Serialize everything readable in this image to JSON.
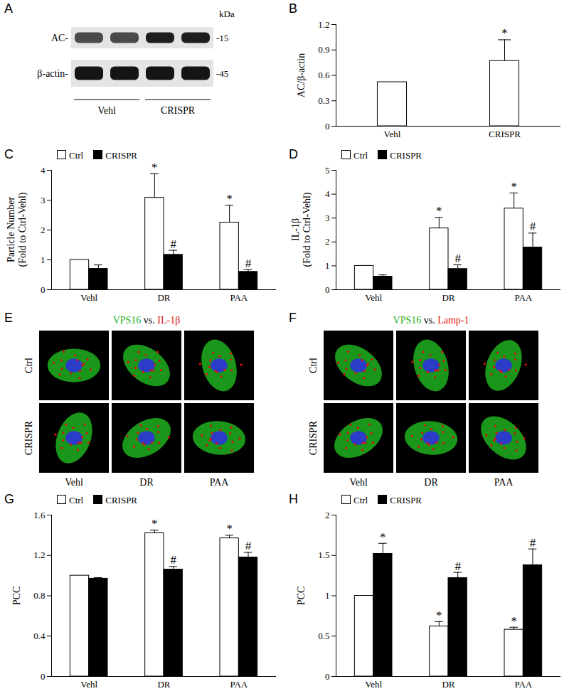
{
  "chart_data": [
    {
      "panel": "B",
      "type": "bar",
      "categories": [
        "Vehl",
        "CRISPR"
      ],
      "values": [
        0.52,
        0.77
      ],
      "errors": [
        null,
        0.25
      ],
      "significance": [
        null,
        "*"
      ],
      "color": "#ffffff",
      "ylabel": "AC/β-actin",
      "ylim": [
        0,
        1.2
      ],
      "yticks": [
        0,
        0.3,
        0.6,
        0.9,
        1.2
      ]
    },
    {
      "panel": "C",
      "type": "bar",
      "categories": [
        "Vehl",
        "DR",
        "PAA"
      ],
      "ylabel": "Particle Number\n(Fold to Ctrl-Vehl)",
      "legend": "top-left",
      "ylim": [
        0,
        4
      ],
      "yticks": [
        0,
        1,
        2,
        3,
        4
      ],
      "series": [
        {
          "name": "Ctrl",
          "color": "#ffffff",
          "values": [
            1.0,
            3.08,
            2.25
          ],
          "errors": [
            null,
            0.8,
            0.58
          ],
          "significance": [
            null,
            "*",
            "*"
          ]
        },
        {
          "name": "CRISPR",
          "color": "#000000",
          "values": [
            0.7,
            1.17,
            0.6
          ],
          "errors": [
            0.13,
            0.15,
            0.07
          ],
          "significance": [
            null,
            "#",
            "#"
          ]
        }
      ]
    },
    {
      "panel": "D",
      "type": "bar",
      "categories": [
        "Vehl",
        "DR",
        "PAA"
      ],
      "ylabel": "IL-1β\n(Fold to Ctrl-Vehl)",
      "legend": "top-left",
      "ylim": [
        0,
        5
      ],
      "yticks": [
        0,
        1,
        2,
        3,
        4,
        5
      ],
      "series": [
        {
          "name": "Ctrl",
          "color": "#ffffff",
          "values": [
            1.0,
            2.57,
            3.4
          ],
          "errors": [
            null,
            0.45,
            0.65
          ],
          "significance": [
            null,
            "*",
            "*"
          ]
        },
        {
          "name": "CRISPR",
          "color": "#000000",
          "values": [
            0.55,
            0.87,
            1.77
          ],
          "errors": [
            0.07,
            0.17,
            0.6
          ],
          "significance": [
            null,
            "#",
            "#"
          ]
        }
      ]
    },
    {
      "panel": "G",
      "type": "bar",
      "categories": [
        "Vehl",
        "DR",
        "PAA"
      ],
      "ylabel": "PCC",
      "legend": "top-left",
      "ylim": [
        0,
        1.6
      ],
      "yticks": [
        0,
        0.4,
        0.8,
        1.2,
        1.6
      ],
      "series": [
        {
          "name": "Ctrl",
          "color": "#ffffff",
          "values": [
            1.0,
            1.42,
            1.37
          ],
          "errors": [
            null,
            0.03,
            0.03
          ],
          "significance": [
            null,
            "*",
            "*"
          ]
        },
        {
          "name": "CRISPR",
          "color": "#000000",
          "values": [
            0.97,
            1.06,
            1.18
          ],
          "errors": [
            0.01,
            0.03,
            0.05
          ],
          "significance": [
            null,
            "#",
            "#"
          ]
        }
      ]
    },
    {
      "panel": "H",
      "type": "bar",
      "categories": [
        "Vehl",
        "DR",
        "PAA"
      ],
      "ylabel": "PCC",
      "legend": "top-left",
      "ylim": [
        0,
        2
      ],
      "yticks": [
        0,
        0.5,
        1,
        1.5,
        2
      ],
      "series": [
        {
          "name": "Ctrl",
          "color": "#ffffff",
          "values": [
            1.0,
            0.62,
            0.58
          ],
          "errors": [
            null,
            0.06,
            0.03
          ],
          "significance": [
            null,
            "*",
            "*"
          ]
        },
        {
          "name": "CRISPR",
          "color": "#000000",
          "values": [
            1.52,
            1.22,
            1.38
          ],
          "errors": [
            0.13,
            0.07,
            0.2
          ],
          "significance": [
            "*",
            "#",
            "#"
          ]
        }
      ]
    }
  ],
  "blot": {
    "panel": "A",
    "unit": "kDa",
    "bands": [
      {
        "label": "AC-",
        "size": "-15"
      },
      {
        "label": "β-actin-",
        "size": "-45"
      }
    ],
    "groups": [
      "Vehl",
      "CRISPR"
    ]
  },
  "micrographs": [
    {
      "panel": "E",
      "stains": [
        {
          "text": "VPS16",
          "color": "#1fb01f"
        },
        {
          "text": "IL-1β",
          "color": "#e01010"
        }
      ],
      "joiner": "vs.",
      "rows": [
        "Ctrl",
        "CRISPR"
      ],
      "columns": [
        "Vehl",
        "DR",
        "PAA"
      ]
    },
    {
      "panel": "F",
      "stains": [
        {
          "text": "VPS16",
          "color": "#1fb01f"
        },
        {
          "text": "Lamp-1",
          "color": "#e01010"
        }
      ],
      "joiner": "vs.",
      "rows": [
        "Ctrl",
        "CRISPR"
      ],
      "columns": [
        "Vehl",
        "DR",
        "PAA"
      ]
    }
  ]
}
